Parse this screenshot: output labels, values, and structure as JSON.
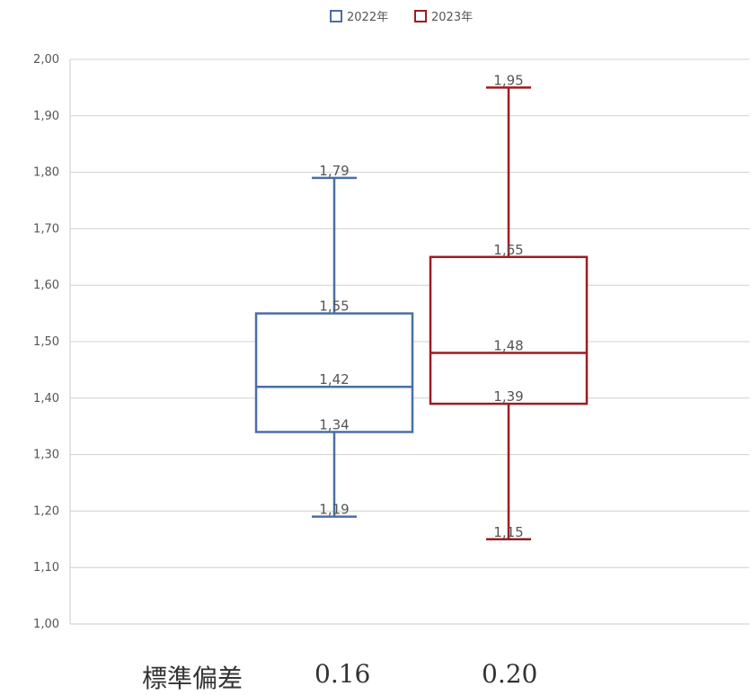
{
  "chart_data": {
    "type": "box",
    "legend_position": "top-center",
    "grid": true,
    "ylim": [
      1.0,
      2.0
    ],
    "yticks": [
      "1,00",
      "1,10",
      "1,20",
      "1,30",
      "1,40",
      "1,50",
      "1,60",
      "1,70",
      "1,80",
      "1,90",
      "2,00"
    ],
    "series": [
      {
        "name": "2022年",
        "color": "#4a6fa5",
        "min": 1.19,
        "q1": 1.34,
        "median": 1.42,
        "q3": 1.55,
        "max": 1.79,
        "labels": {
          "min": "1,19",
          "q1": "1,34",
          "median": "1,42",
          "q3": "1,55",
          "max": "1,79"
        }
      },
      {
        "name": "2023年",
        "color": "#9b1c23",
        "min": 1.15,
        "q1": 1.39,
        "median": 1.48,
        "q3": 1.65,
        "max": 1.95,
        "labels": {
          "min": "1,15",
          "q1": "1,39",
          "median": "1,48",
          "q3": "1,65",
          "max": "1,95"
        }
      }
    ]
  },
  "footer": {
    "label": "標準偏差",
    "values": [
      "0.16",
      "0.20"
    ]
  }
}
